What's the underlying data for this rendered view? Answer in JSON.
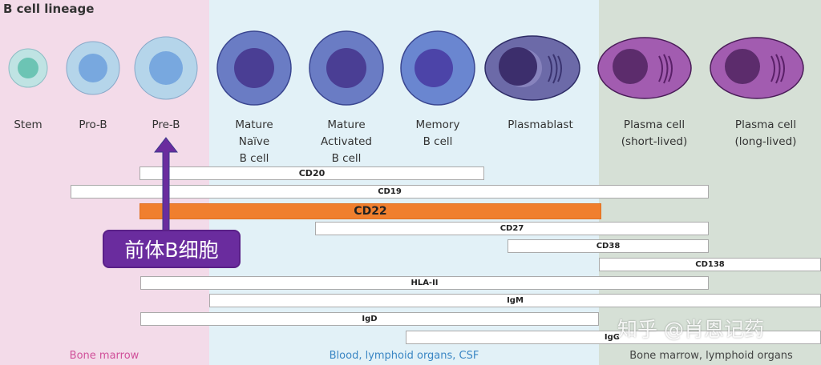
{
  "title": "B cell lineage",
  "cells": [
    {
      "label": "Stem"
    },
    {
      "label": "Pro-B"
    },
    {
      "label": "Pre-B"
    },
    {
      "label": "Mature\nNaïve\nB cell"
    },
    {
      "label": "Mature\nActivated\nB cell"
    },
    {
      "label": "Memory\nB cell"
    },
    {
      "label": "Plasmablast"
    },
    {
      "label": "Plasma cell\n(short-lived)"
    },
    {
      "label": "Plasma cell\n(long-lived)"
    }
  ],
  "markers": [
    "CD20",
    "CD19",
    "CD22",
    "CD27",
    "CD38",
    "CD138",
    "HLA-II",
    "IgM",
    "IgD",
    "IgG"
  ],
  "highlight_marker": "CD22",
  "regions": [
    "Bone marrow",
    "Blood, lymphoid organs, CSF",
    "Bone marrow, lymphoid organs"
  ],
  "annotation": "前体B细胞",
  "watermark": "知乎 @肖恩记药",
  "colors": {
    "highlight": "#f07f2e",
    "arrow": "#6a2c9e",
    "region1": "#f3dbe9",
    "region2": "#e2f1f7",
    "region3": "#d6e0d6"
  }
}
